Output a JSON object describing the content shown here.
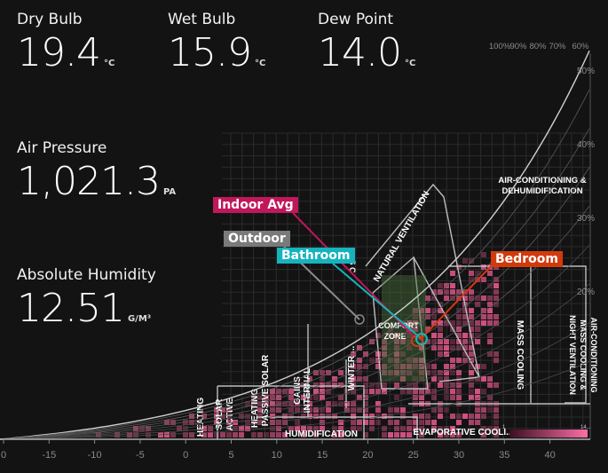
{
  "metrics": {
    "dry_bulb": {
      "label": "Dry Bulb",
      "value": "19.4",
      "unit": "°C"
    },
    "wet_bulb": {
      "label": "Wet Bulb",
      "value": "15.9",
      "unit": "°C"
    },
    "dew_point": {
      "label": "Dew Point",
      "value": "14.0",
      "unit": "°C"
    },
    "air_pressure": {
      "label": "Air Pressure",
      "value": "1,021.3",
      "unit": "PA"
    },
    "absolute_humidity": {
      "label": "Absolute Humidity",
      "value": "12.51",
      "unit": "G/M³"
    }
  },
  "tags": {
    "indoor_avg": {
      "label": "Indoor Avg",
      "color": "#c0185a"
    },
    "outdoor": {
      "label": "Outdoor",
      "color": "#7a7a7a"
    },
    "bathroom": {
      "label": "Bathroom",
      "color": "#17b3bd"
    },
    "bedroom": {
      "label": "Bedroom",
      "color": "#d23a0c"
    }
  },
  "chart_data": {
    "type": "heatmap",
    "x_ticks": [
      "0",
      "-15",
      "-10",
      "-5",
      "0",
      "5",
      "10",
      "15",
      "20",
      "25",
      "30",
      "35",
      "40"
    ],
    "rh_top_labels": [
      "100%",
      "90%",
      "80%",
      "70%",
      "60%"
    ],
    "rh_side_labels": [
      "50%",
      "40%",
      "30%",
      "20%"
    ],
    "zones": {
      "natural_ventilation": "NATURAL VENTILATION",
      "comfort_zone_1": "COMFORT",
      "comfort_zone_2": "ZONE",
      "mass_cooling": "MASS COOLING",
      "ac_mass_cooling_1": "AIR-CONDITIONING",
      "ac_mass_cooling_2": "MASS COOLING &",
      "ac_mass_cooling_3": "NIGHT VENTILATION",
      "ac_dehum_1": "AIR-CONDITIONING &",
      "ac_dehum_2": "DEHUMIDIFICATION",
      "internal_gains_1": "INTERNAL",
      "internal_gains_2": "GAINS",
      "winter": "WINTER ...",
      "passive_solar_1": "PASSIVE SOLAR",
      "passive_solar_2": "HEATING",
      "active_solar_1": "ACTIVE",
      "active_solar_2": "SOLAR",
      "heating": "HEATING",
      "humidification": "HUMIDIFICATION",
      "evaporative_cooling": "EVAPORATIVE COOLI...",
      "partial_label": "S C"
    },
    "legend": {
      "left": "1",
      "right": "14..."
    },
    "colors": {
      "heat": "#e0568a",
      "accent": "#c0185a",
      "zone_line": "#bdbdbd",
      "marker_bath": "#17b3bd",
      "marker_bed": "#d23a0c"
    }
  }
}
